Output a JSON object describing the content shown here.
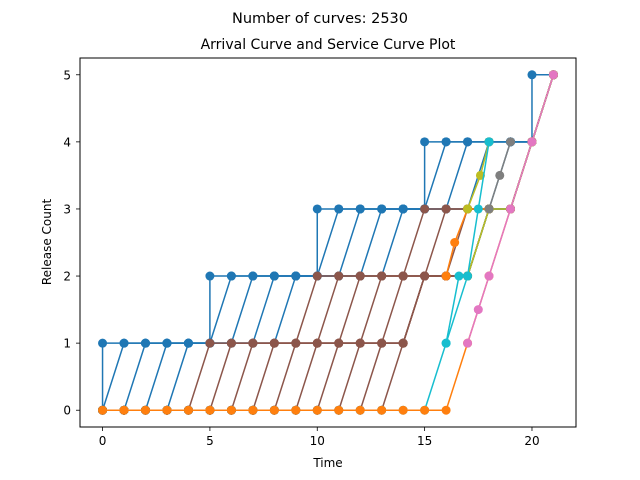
{
  "chart_data": {
    "type": "line",
    "suptitle": "Number of curves: 2530",
    "title": "Arrival Curve and Service Curve Plot",
    "xlabel": "Time",
    "ylabel": "Release Count",
    "xlim": [
      -1.05,
      22.05
    ],
    "ylim": [
      -0.25,
      5.25
    ],
    "xticks": [
      0,
      5,
      10,
      15,
      20
    ],
    "yticks": [
      0,
      1,
      2,
      3,
      4,
      5
    ],
    "grid": false,
    "legend": "none",
    "series": [
      {
        "color": "#1f77b4",
        "x": [
          0,
          0,
          1,
          2,
          3,
          4,
          5,
          5,
          6,
          7,
          8,
          9,
          10,
          10,
          11,
          12,
          13,
          14,
          15,
          15,
          16,
          17,
          18,
          19,
          20,
          20,
          21
        ],
        "y": [
          0,
          1,
          1,
          1,
          1,
          1,
          1,
          2,
          2,
          2,
          2,
          2,
          2,
          3,
          3,
          3,
          3,
          3,
          3,
          4,
          4,
          4,
          4,
          4,
          4,
          5,
          5
        ]
      },
      {
        "color": "#1f77b4",
        "x": [
          0,
          1,
          2,
          3,
          4,
          5,
          6,
          7,
          8,
          9,
          10,
          11,
          12,
          13,
          14,
          15,
          16,
          17,
          18,
          19,
          20,
          21
        ],
        "y": [
          0,
          1,
          1,
          1,
          1,
          1,
          2,
          2,
          2,
          2,
          2,
          3,
          3,
          3,
          3,
          3,
          4,
          4,
          4,
          4,
          4,
          5
        ]
      },
      {
        "color": "#1f77b4",
        "x": [
          0,
          1,
          2,
          3,
          4,
          5,
          6,
          7,
          8,
          9,
          10,
          11,
          12,
          13,
          14,
          15,
          16,
          17,
          18,
          19,
          20,
          21
        ],
        "y": [
          0,
          0,
          1,
          1,
          1,
          1,
          1,
          2,
          2,
          2,
          2,
          2,
          3,
          3,
          3,
          3,
          3,
          4,
          4,
          4,
          4,
          5
        ]
      },
      {
        "color": "#1f77b4",
        "x": [
          0,
          1,
          2,
          3,
          4,
          5,
          6,
          7,
          8,
          9,
          10,
          11,
          12,
          13,
          14,
          15,
          16,
          17,
          18,
          19,
          20,
          21
        ],
        "y": [
          0,
          0,
          0,
          1,
          1,
          1,
          1,
          1,
          2,
          2,
          2,
          2,
          2,
          3,
          3,
          3,
          3,
          3,
          4,
          4,
          4,
          5
        ]
      },
      {
        "color": "#1f77b4",
        "x": [
          0,
          1,
          2,
          3,
          4,
          5,
          6,
          7,
          8,
          9,
          10,
          11,
          12,
          13,
          14,
          15,
          16,
          17,
          18,
          19,
          20,
          21
        ],
        "y": [
          0,
          0,
          0,
          0,
          1,
          1,
          1,
          1,
          1,
          2,
          2,
          2,
          2,
          2,
          3,
          3,
          3,
          3,
          3,
          4,
          4,
          5
        ]
      },
      {
        "color": "#8c564b",
        "x": [
          0,
          1,
          2,
          3,
          4,
          5,
          6,
          7,
          8,
          9,
          10,
          11,
          12,
          13,
          14,
          15,
          16,
          17,
          18,
          19,
          20,
          21
        ],
        "y": [
          0,
          0,
          0,
          0,
          0,
          1,
          1,
          1,
          1,
          1,
          2,
          2,
          2,
          2,
          2,
          3,
          3,
          3,
          3,
          3,
          4,
          5
        ]
      },
      {
        "color": "#8c564b",
        "x": [
          0,
          1,
          2,
          3,
          4,
          5,
          6,
          7,
          8,
          9,
          10,
          11,
          12,
          13,
          14,
          15,
          16,
          17,
          18,
          19,
          20,
          21
        ],
        "y": [
          0,
          0,
          0,
          0,
          0,
          0,
          1,
          1,
          1,
          1,
          1,
          2,
          2,
          2,
          2,
          2,
          3,
          3,
          3,
          3,
          4,
          5
        ]
      },
      {
        "color": "#8c564b",
        "x": [
          0,
          1,
          2,
          3,
          4,
          5,
          6,
          7,
          8,
          9,
          10,
          11,
          12,
          13,
          14,
          15,
          16,
          17,
          18,
          19,
          20,
          21
        ],
        "y": [
          0,
          0,
          0,
          0,
          0,
          0,
          0,
          1,
          1,
          1,
          1,
          1,
          2,
          2,
          2,
          2,
          2,
          3,
          3,
          3,
          4,
          5
        ]
      },
      {
        "color": "#8c564b",
        "x": [
          0,
          1,
          2,
          3,
          4,
          5,
          6,
          7,
          8,
          9,
          10,
          11,
          12,
          13,
          14,
          15,
          16,
          17,
          18,
          19,
          20,
          21
        ],
        "y": [
          0,
          0,
          0,
          0,
          0,
          0,
          0,
          0,
          1,
          1,
          1,
          1,
          1,
          2,
          2,
          2,
          2,
          2,
          3,
          3,
          4,
          5
        ]
      },
      {
        "color": "#8c564b",
        "x": [
          0,
          1,
          2,
          3,
          4,
          5,
          6,
          7,
          8,
          9,
          10,
          11,
          12,
          13,
          14,
          15,
          16,
          17,
          18,
          19,
          20,
          21
        ],
        "y": [
          0,
          0,
          0,
          0,
          0,
          0,
          0,
          0,
          0,
          1,
          1,
          1,
          1,
          1,
          2,
          2,
          2,
          2,
          3,
          3,
          4,
          5
        ]
      },
      {
        "color": "#8c564b",
        "x": [
          0,
          1,
          2,
          3,
          4,
          5,
          6,
          7,
          8,
          9,
          10,
          11,
          12,
          13,
          14,
          15,
          16,
          17,
          18,
          19,
          20,
          21
        ],
        "y": [
          0,
          0,
          0,
          0,
          0,
          0,
          0,
          0,
          0,
          0,
          1,
          1,
          1,
          1,
          1,
          2,
          2,
          2,
          3,
          3,
          4,
          5
        ]
      },
      {
        "color": "#8c564b",
        "x": [
          0,
          1,
          2,
          3,
          4,
          5,
          6,
          7,
          8,
          9,
          10,
          11,
          12,
          13,
          14,
          15,
          16,
          17,
          18,
          19,
          20,
          21
        ],
        "y": [
          0,
          0,
          0,
          0,
          0,
          0,
          0,
          0,
          0,
          0,
          0,
          1,
          1,
          1,
          1,
          2,
          2,
          2,
          3,
          3,
          4,
          5
        ]
      },
      {
        "color": "#8c564b",
        "x": [
          0,
          1,
          2,
          3,
          4,
          5,
          6,
          7,
          8,
          9,
          10,
          11,
          12,
          13,
          14,
          15,
          16,
          17,
          18,
          19,
          20,
          21
        ],
        "y": [
          0,
          0,
          0,
          0,
          0,
          0,
          0,
          0,
          0,
          0,
          0,
          0,
          1,
          1,
          1,
          2,
          2,
          2,
          3,
          3,
          4,
          5
        ]
      },
      {
        "color": "#8c564b",
        "x": [
          0,
          1,
          2,
          3,
          4,
          5,
          6,
          7,
          8,
          9,
          10,
          11,
          12,
          13,
          14,
          15,
          16,
          17,
          18,
          19,
          20,
          21
        ],
        "y": [
          0,
          0,
          0,
          0,
          0,
          0,
          0,
          0,
          0,
          0,
          0,
          0,
          0,
          1,
          1,
          2,
          2,
          2,
          3,
          3,
          4,
          5
        ]
      },
      {
        "color": "#8c564b",
        "x": [
          0,
          1,
          2,
          3,
          4,
          5,
          6,
          7,
          8,
          9,
          10,
          11,
          12,
          13,
          14,
          15,
          16,
          17,
          18,
          19,
          20,
          21
        ],
        "y": [
          0,
          0,
          0,
          0,
          0,
          0,
          0,
          0,
          0,
          0,
          0,
          0,
          0,
          0,
          1,
          2,
          2,
          2,
          3,
          3,
          4,
          5
        ]
      },
      {
        "color": "#17becf",
        "x": [
          0,
          1,
          2,
          3,
          4,
          5,
          6,
          7,
          8,
          9,
          10,
          11,
          12,
          13,
          14,
          15,
          16,
          17,
          18,
          19,
          20,
          21
        ],
        "y": [
          0,
          0,
          0,
          0,
          0,
          0,
          0,
          0,
          0,
          0,
          0,
          0,
          0,
          0,
          0,
          0,
          1,
          2,
          3,
          3,
          4,
          5
        ]
      },
      {
        "color": "#ff7f0e",
        "x": [
          0,
          1,
          2,
          3,
          4,
          5,
          6,
          7,
          8,
          9,
          10,
          11,
          12,
          13,
          14,
          15,
          16,
          17,
          18,
          19,
          20,
          21
        ],
        "y": [
          0,
          0,
          0,
          0,
          0,
          0,
          0,
          0,
          0,
          0,
          0,
          0,
          0,
          0,
          0,
          0,
          0,
          1,
          2,
          3,
          4,
          5
        ]
      },
      {
        "color": "#ff7f0e",
        "x": [
          16,
          16.4,
          17,
          18
        ],
        "y": [
          2,
          2.5,
          3,
          3
        ]
      },
      {
        "color": "#bcbd22",
        "x": [
          17,
          18,
          19,
          20,
          21
        ],
        "y": [
          2,
          3,
          3,
          4,
          5
        ]
      },
      {
        "color": "#bcbd22",
        "x": [
          17,
          17.6,
          18
        ],
        "y": [
          3,
          3.5,
          4
        ]
      },
      {
        "color": "#7f7f7f",
        "x": [
          18,
          18.5,
          19
        ],
        "y": [
          3,
          3.5,
          4
        ]
      },
      {
        "color": "#e377c2",
        "x": [
          17,
          17.5,
          18,
          19,
          20,
          21
        ],
        "y": [
          1,
          1.5,
          2,
          3,
          4,
          5
        ]
      },
      {
        "color": "#17becf",
        "x": [
          16,
          16.6,
          17,
          17.5,
          18
        ],
        "y": [
          1,
          2,
          2,
          3,
          4
        ]
      }
    ]
  }
}
